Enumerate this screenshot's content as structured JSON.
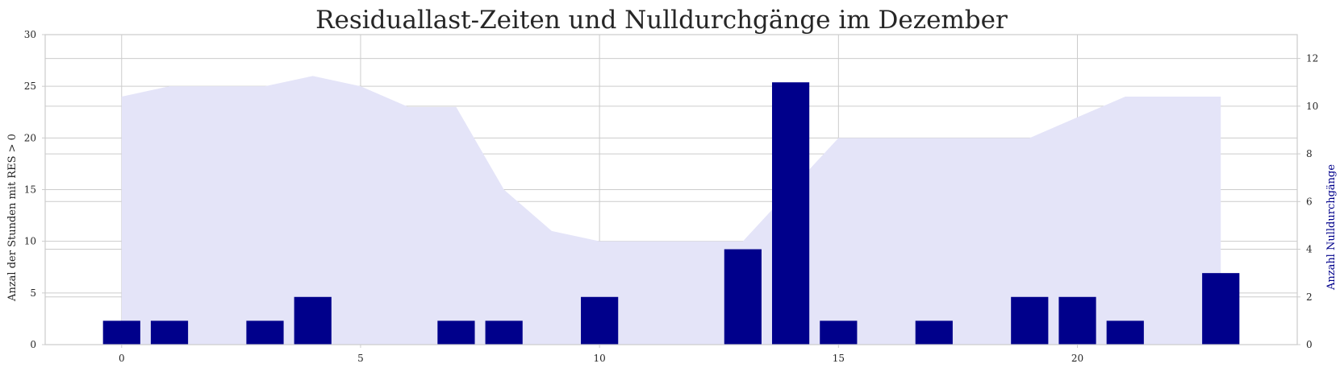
{
  "chart_data": {
    "type": "bar",
    "title": "Residuallast-Zeiten und Nulldurchgänge im Dezember",
    "ylabel_left": "Anzal der Stunden mit RES > 0",
    "ylabel_right": "Anzahl Nulldurchgänge",
    "xlim": [
      -1.6,
      24.6
    ],
    "ylim_left": [
      0,
      30
    ],
    "ylim_right": [
      0,
      13
    ],
    "xticks": [
      0,
      5,
      10,
      15,
      20
    ],
    "yticks_left": [
      0,
      5,
      10,
      15,
      20,
      25,
      30
    ],
    "yticks_right": [
      0,
      2,
      4,
      6,
      8,
      10,
      12
    ],
    "grid": true,
    "colors": {
      "area": "#e4e4f8",
      "bars": "#00008b",
      "grid": "#cccccc",
      "right_label": "#00008b"
    },
    "series": [
      {
        "type": "area",
        "axis": "left",
        "x": [
          0,
          1,
          2,
          3,
          4,
          5,
          6,
          7,
          8,
          9,
          10,
          11,
          12,
          13,
          14,
          15,
          16,
          17,
          18,
          19,
          20,
          21,
          22,
          23
        ],
        "values": [
          24,
          25,
          25,
          25,
          26,
          25,
          23,
          23,
          15,
          11,
          10,
          10,
          10,
          10,
          15,
          20,
          20,
          20,
          20,
          20,
          22,
          24,
          24,
          24
        ]
      },
      {
        "type": "bar",
        "axis": "right",
        "x": [
          0,
          1,
          2,
          3,
          4,
          5,
          6,
          7,
          8,
          9,
          10,
          11,
          12,
          13,
          14,
          15,
          16,
          17,
          18,
          19,
          20,
          21,
          22,
          23
        ],
        "values": [
          1,
          1,
          0,
          1,
          2,
          0,
          0,
          1,
          1,
          0,
          2,
          0,
          0,
          4,
          11,
          1,
          0,
          1,
          0,
          2,
          2,
          1,
          0,
          3
        ]
      }
    ]
  }
}
